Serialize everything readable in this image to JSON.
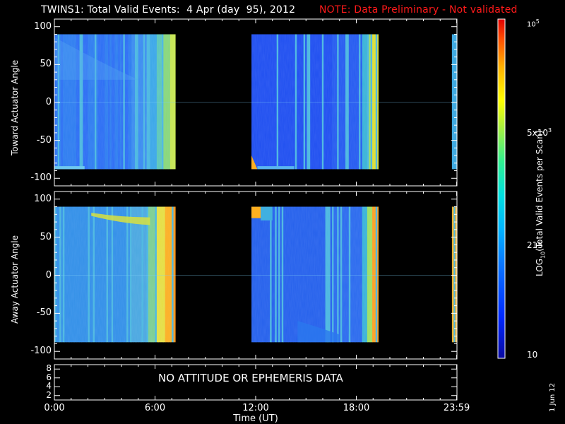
{
  "title": {
    "main": "TWINS1: Total Valid Events:  4 Apr (day  95), 2012",
    "note": "NOTE: Data Preliminary - Not validated",
    "note_color": "#ff1a1a"
  },
  "chart_data": [
    {
      "type": "heatmap",
      "panel": "top",
      "ylabel": "Toward Actuator Angle",
      "xlabel": "",
      "ylim": [
        -110,
        110
      ],
      "yticks": [
        "100",
        "50",
        "0",
        "-50",
        "-100"
      ],
      "data_extent_y": [
        -88,
        90
      ],
      "segments_hours": [
        [
          0.0,
          7.2
        ],
        [
          11.75,
          19.3
        ],
        [
          23.7,
          24.0
        ]
      ],
      "colorscale": "log10"
    },
    {
      "type": "heatmap",
      "panel": "middle",
      "ylabel": "Away Actuator Angle",
      "xlabel": "",
      "ylim": [
        -110,
        110
      ],
      "yticks": [
        "100",
        "50",
        "0",
        "-50",
        "-100"
      ],
      "data_extent_y": [
        -88,
        90
      ],
      "segments_hours": [
        [
          0.0,
          7.2
        ],
        [
          11.75,
          19.3
        ],
        [
          23.7,
          24.0
        ]
      ],
      "colorscale": "log10"
    },
    {
      "type": "line",
      "panel": "bottom",
      "yticks": [
        "8",
        "6",
        "4",
        "2"
      ],
      "ylim": [
        1,
        9
      ],
      "message": "NO ATTITUDE OR EPHEMERIS DATA"
    }
  ],
  "x_axis": {
    "range_hours": [
      0,
      24
    ],
    "ticks": [
      {
        "hour": 0,
        "label": "0:00"
      },
      {
        "hour": 6,
        "label": "6:00"
      },
      {
        "hour": 12,
        "label": "12:00"
      },
      {
        "hour": 18,
        "label": "18:00"
      },
      {
        "hour": 23.983,
        "label": "23:59"
      }
    ],
    "label": "Time (UT)"
  },
  "colorbar": {
    "label_main": "LOG",
    "label_sub": "10",
    "label_rest": "(Total Valid Events per Scan)",
    "range": [
      10,
      100000
    ],
    "ticks": [
      {
        "value": 10,
        "label": "10"
      },
      {
        "value": 215,
        "label": "215"
      },
      {
        "value": 5000,
        "label_base": "5x10",
        "label_exp": "3"
      },
      {
        "value": 100000,
        "label_base": "10",
        "label_exp": "5"
      }
    ]
  },
  "datestamp": "1 Jun 12"
}
